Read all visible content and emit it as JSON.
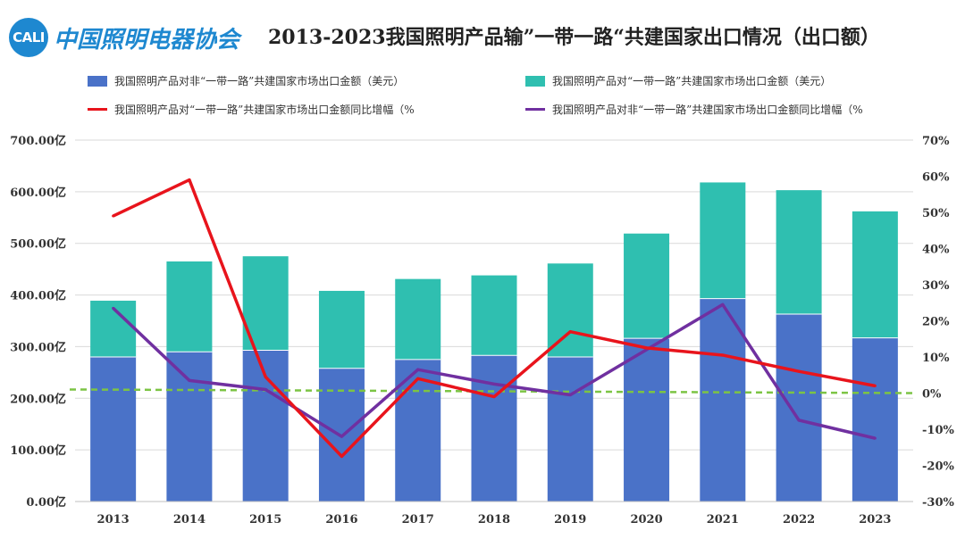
{
  "header": {
    "logo_abbr": "CALI",
    "logo_text": "中国照明电器协会",
    "title": "2013-2023我国照明产品输”一带一路“共建国家出口情况（出口额）"
  },
  "colors": {
    "non_bri_bar": "#4a72c8",
    "bri_bar": "#2fbfb0",
    "bri_growth_line": "#e8141c",
    "non_bri_growth_line": "#7030a0",
    "zero_ref_line": "#7cc444"
  },
  "chart_data": {
    "type": "bar",
    "stacked": true,
    "categories": [
      "2013",
      "2014",
      "2015",
      "2016",
      "2017",
      "2018",
      "2019",
      "2020",
      "2021",
      "2022",
      "2023"
    ],
    "series": [
      {
        "name": "我国照明产品对非“一带一路”共建国家市场出口金额（美元）",
        "kind": "bar",
        "axis": "left",
        "values": [
          280,
          290,
          293,
          258,
          275,
          283,
          280,
          316,
          393,
          363,
          317
        ]
      },
      {
        "name": "我国照明产品对“一带一路”共建国家市场出口金额（美元）",
        "kind": "bar",
        "axis": "left",
        "values": [
          109,
          175,
          182,
          150,
          156,
          155,
          181,
          203,
          225,
          240,
          245
        ]
      },
      {
        "name": "我国照明产品对“一带一路”共建国家市场出口金额同比增幅（%",
        "kind": "line",
        "axis": "right",
        "values": [
          49,
          59,
          4.5,
          -17.5,
          4,
          -1,
          17,
          12.5,
          10.5,
          6,
          2
        ]
      },
      {
        "name": "我国照明产品对非“一带一路”共建国家市场出口金额同比增幅（%",
        "kind": "line",
        "axis": "right",
        "values": [
          23.5,
          3.5,
          1,
          -12,
          6.5,
          2.5,
          -0.5,
          12,
          24.5,
          -7.5,
          -12.5
        ]
      }
    ],
    "reference_line": {
      "axis": "right",
      "start_value": 1,
      "end_value": 0
    },
    "y_left": {
      "min": 0,
      "max": 700,
      "step": 100,
      "tick_labels": [
        "0.00亿",
        "100.00亿",
        "200.00亿",
        "300.00亿",
        "400.00亿",
        "500.00亿",
        "600.00亿",
        "700.00亿"
      ]
    },
    "y_right": {
      "min": -30,
      "max": 70,
      "step": 10,
      "tick_labels": [
        "-30%",
        "-20%",
        "-10%",
        "0%",
        "10%",
        "20%",
        "30%",
        "40%",
        "50%",
        "60%",
        "70%"
      ]
    },
    "legend_position": "top",
    "grid": true
  }
}
